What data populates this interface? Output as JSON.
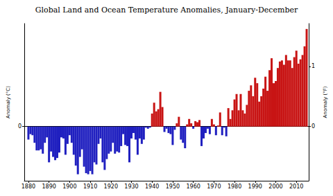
{
  "chart_data": {
    "type": "bar",
    "title": "Global Land and Ocean Temperature Anomalies, January-December",
    "y_label": "Anomaly (°C)",
    "y2_label": "Anomaly (°F)",
    "x": [
      1880,
      1881,
      1882,
      1883,
      1884,
      1885,
      1886,
      1887,
      1888,
      1889,
      1890,
      1891,
      1892,
      1893,
      1894,
      1895,
      1896,
      1897,
      1898,
      1899,
      1900,
      1901,
      1902,
      1903,
      1904,
      1905,
      1906,
      1907,
      1908,
      1909,
      1910,
      1911,
      1912,
      1913,
      1914,
      1915,
      1916,
      1917,
      1918,
      1919,
      1920,
      1921,
      1922,
      1923,
      1924,
      1925,
      1926,
      1927,
      1928,
      1929,
      1930,
      1931,
      1932,
      1933,
      1934,
      1935,
      1936,
      1937,
      1938,
      1939,
      1940,
      1941,
      1942,
      1943,
      1944,
      1945,
      1946,
      1947,
      1948,
      1949,
      1950,
      1951,
      1952,
      1953,
      1954,
      1955,
      1956,
      1957,
      1958,
      1959,
      1960,
      1961,
      1962,
      1963,
      1964,
      1965,
      1966,
      1967,
      1968,
      1969,
      1970,
      1971,
      1972,
      1973,
      1974,
      1975,
      1976,
      1977,
      1978,
      1979,
      1980,
      1981,
      1982,
      1983,
      1984,
      1985,
      1986,
      1987,
      1988,
      1989,
      1990,
      1991,
      1992,
      1993,
      1994,
      1995,
      1996,
      1997,
      1998,
      1999,
      2000,
      2001,
      2002,
      2003,
      2004,
      2005,
      2006,
      2007,
      2008,
      2009,
      2010,
      2011,
      2012,
      2013,
      2014,
      2015
    ],
    "values": [
      -0.12,
      -0.07,
      -0.08,
      -0.15,
      -0.22,
      -0.22,
      -0.21,
      -0.25,
      -0.15,
      -0.1,
      -0.33,
      -0.23,
      -0.28,
      -0.31,
      -0.29,
      -0.24,
      -0.1,
      -0.11,
      -0.26,
      -0.16,
      -0.08,
      -0.15,
      -0.26,
      -0.36,
      -0.44,
      -0.28,
      -0.21,
      -0.37,
      -0.43,
      -0.44,
      -0.41,
      -0.44,
      -0.33,
      -0.35,
      -0.16,
      -0.11,
      -0.33,
      -0.4,
      -0.3,
      -0.25,
      -0.23,
      -0.15,
      -0.25,
      -0.23,
      -0.24,
      -0.18,
      -0.07,
      -0.17,
      -0.18,
      -0.33,
      -0.11,
      -0.06,
      -0.12,
      -0.26,
      -0.11,
      -0.16,
      -0.12,
      -0.01,
      -0.02,
      -0.01,
      0.12,
      0.22,
      0.14,
      0.16,
      0.32,
      0.18,
      -0.05,
      -0.02,
      -0.06,
      -0.07,
      -0.17,
      -0.03,
      0.03,
      0.09,
      -0.12,
      -0.15,
      -0.2,
      0.02,
      0.07,
      0.03,
      -0.02,
      0.05,
      0.04,
      0.06,
      -0.18,
      -0.11,
      -0.06,
      -0.02,
      -0.07,
      0.07,
      0.02,
      -0.08,
      0.01,
      0.13,
      -0.08,
      -0.01,
      -0.09,
      0.17,
      0.07,
      0.15,
      0.25,
      0.3,
      0.15,
      0.3,
      0.15,
      0.12,
      0.2,
      0.33,
      0.38,
      0.28,
      0.45,
      0.4,
      0.23,
      0.28,
      0.35,
      0.46,
      0.33,
      0.52,
      0.63,
      0.4,
      0.42,
      0.54,
      0.6,
      0.61,
      0.57,
      0.66,
      0.61,
      0.61,
      0.54,
      0.64,
      0.7,
      0.58,
      0.62,
      0.66,
      0.74,
      0.9
    ],
    "colors": [
      "#2020c0",
      "#2020c0",
      "#2020c0",
      "#2020c0",
      "#2020c0",
      "#2020c0",
      "#2020c0",
      "#2020c0",
      "#2020c0",
      "#2020c0",
      "#2020c0",
      "#2020c0",
      "#2020c0",
      "#2020c0",
      "#2020c0",
      "#2020c0",
      "#2020c0",
      "#2020c0",
      "#2020c0",
      "#2020c0",
      "#2020c0",
      "#2020c0",
      "#2020c0",
      "#2020c0",
      "#2020c0",
      "#2020c0",
      "#2020c0",
      "#2020c0",
      "#2020c0",
      "#2020c0",
      "#2020c0",
      "#2020c0",
      "#2020c0",
      "#2020c0",
      "#2020c0",
      "#2020c0",
      "#2020c0",
      "#2020c0",
      "#2020c0",
      "#2020c0",
      "#2020c0",
      "#2020c0",
      "#2020c0",
      "#2020c0",
      "#2020c0",
      "#2020c0",
      "#2020c0",
      "#2020c0",
      "#2020c0",
      "#2020c0",
      "#2020c0",
      "#2020c0",
      "#2020c0",
      "#2020c0",
      "#2020c0",
      "#2020c0",
      "#2020c0",
      "#2020c0",
      "#2020c0",
      "#2020c0",
      "#c81414",
      "#c81414",
      "#c81414",
      "#c81414",
      "#c81414",
      "#c81414",
      "#2020c0",
      "#2020c0",
      "#2020c0",
      "#2020c0",
      "#2020c0",
      "#2020c0",
      "#c81414",
      "#c81414",
      "#2020c0",
      "#2020c0",
      "#2020c0",
      "#c81414",
      "#c81414",
      "#c81414",
      "#2020c0",
      "#c81414",
      "#c81414",
      "#c81414",
      "#2020c0",
      "#2020c0",
      "#2020c0",
      "#2020c0",
      "#2020c0",
      "#c81414",
      "#c81414",
      "#2020c0",
      "#c81414",
      "#c81414",
      "#2020c0",
      "#2020c0",
      "#2020c0",
      "#c81414",
      "#c81414",
      "#c81414",
      "#c81414",
      "#c81414",
      "#c81414",
      "#c81414",
      "#c81414",
      "#c81414",
      "#c81414",
      "#c81414",
      "#c81414",
      "#c81414",
      "#c81414",
      "#c81414",
      "#c81414",
      "#c81414",
      "#c81414",
      "#c81414",
      "#c81414",
      "#c81414",
      "#c81414",
      "#c81414",
      "#c81414",
      "#c81414",
      "#c81414",
      "#c81414",
      "#c81414",
      "#c81414",
      "#c81414",
      "#c81414",
      "#c81414",
      "#c81414",
      "#c81414",
      "#c81414",
      "#c81414",
      "#c81414",
      "#c81414",
      "#c81414"
    ],
    "xlim": [
      1878,
      2016
    ],
    "xticks": [
      1880,
      1890,
      1900,
      1910,
      1920,
      1930,
      1940,
      1950,
      1960,
      1970,
      1980,
      1990,
      2000,
      2010
    ],
    "ylim": [
      -0.5,
      0.95
    ],
    "yticks": [
      0
    ],
    "y2lim": [
      -0.9,
      1.71
    ],
    "y2ticks": [
      0,
      1
    ],
    "grid": true
  }
}
